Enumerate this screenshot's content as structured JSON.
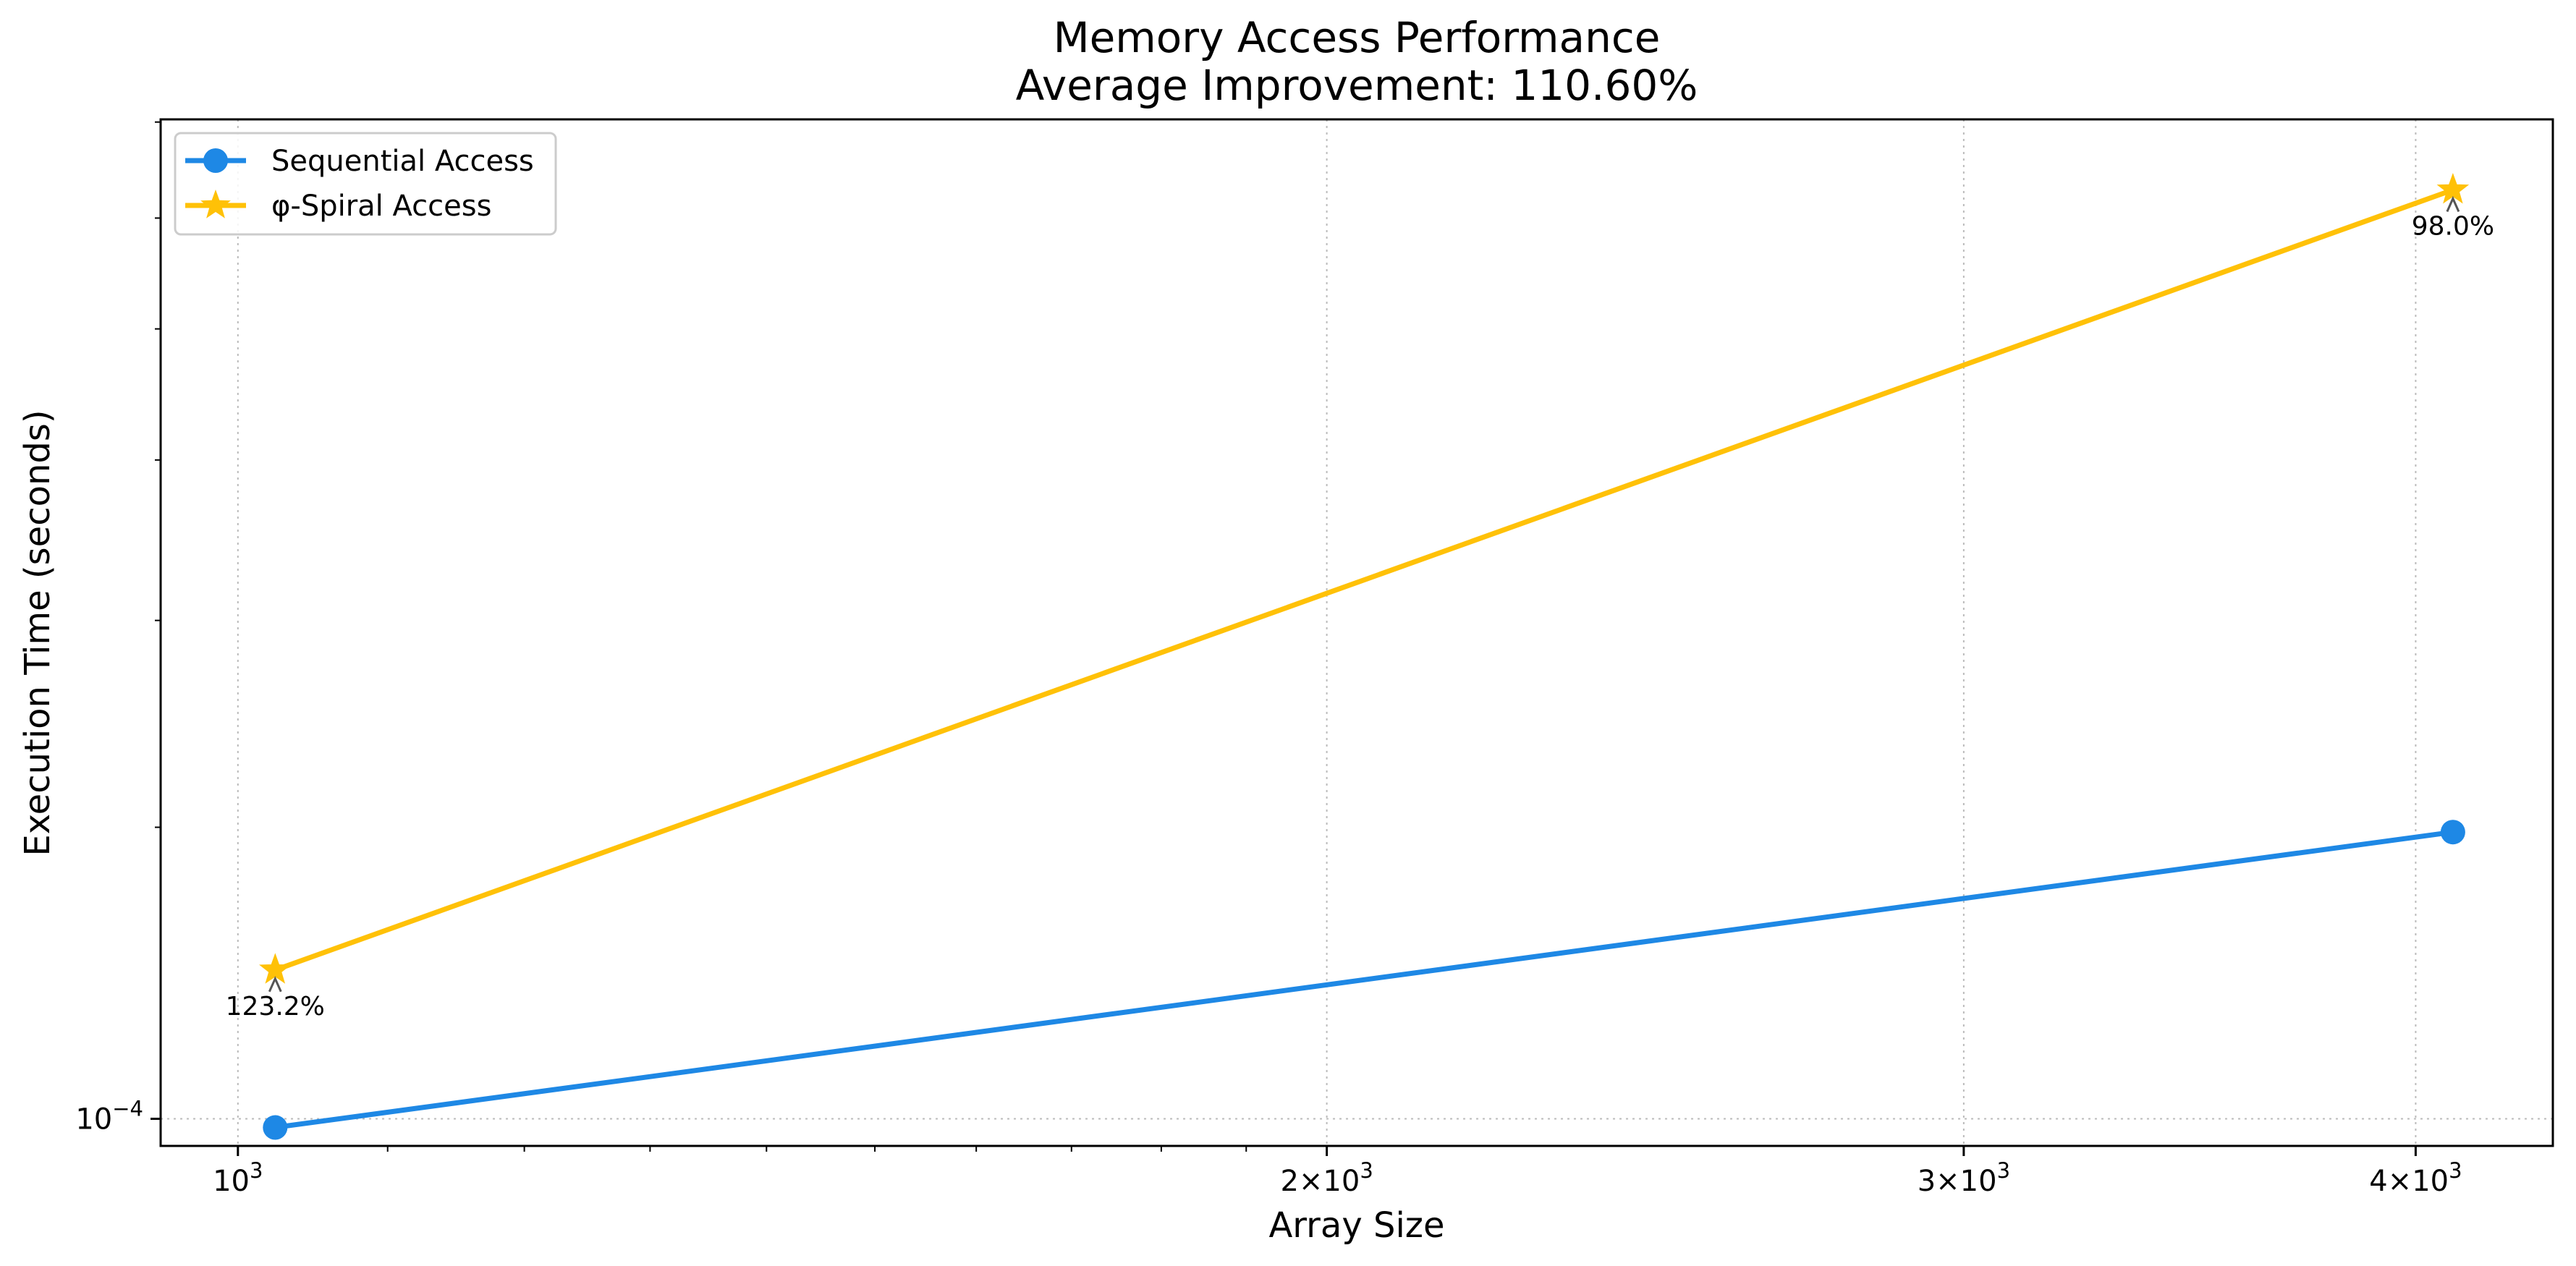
{
  "chart_data": {
    "type": "line",
    "title": "Memory Access Performance",
    "subtitle": "Average Improvement: 110.60%",
    "xlabel": "Array Size",
    "ylabel": "Execution Time (seconds)",
    "x_scale": "log",
    "y_scale": "log",
    "xlim": [
      952,
      4365
    ],
    "ylim": [
      9.63e-05,
      0.0004015
    ],
    "x_ticks": [
      {
        "value": 1000,
        "base": "10",
        "exp": "3",
        "prefix": ""
      },
      {
        "value": 2000,
        "base": "10",
        "exp": "3",
        "prefix": "2×"
      },
      {
        "value": 3000,
        "base": "10",
        "exp": "3",
        "prefix": "3×"
      },
      {
        "value": 4000,
        "base": "10",
        "exp": "3",
        "prefix": "4×"
      }
    ],
    "y_ticks": [
      {
        "value": 0.0001,
        "base": "10",
        "exp": "−4",
        "prefix": ""
      }
    ],
    "grid": true,
    "legend_position": "top-left",
    "series": [
      {
        "name": "Sequential Access",
        "color": "#1e88e5",
        "marker": "circle",
        "x": [
          1024,
          4096
        ],
        "y": [
          9.88e-05,
          0.000149
        ]
      },
      {
        "name": "φ-Spiral Access",
        "color": "#ffc107",
        "marker": "star",
        "x": [
          1024,
          4096
        ],
        "y": [
          0.000123,
          0.000364
        ]
      }
    ],
    "annotations": [
      {
        "text": "123.2%",
        "series": 1,
        "point": 0
      },
      {
        "text": "98.0%",
        "series": 1,
        "point": 1
      }
    ]
  }
}
